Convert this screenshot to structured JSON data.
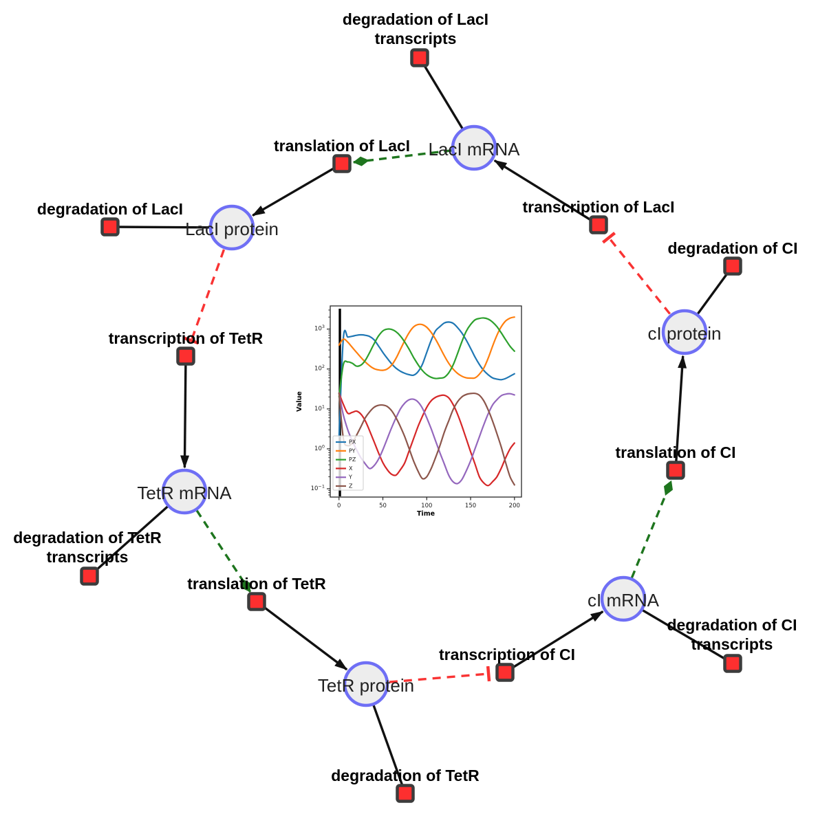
{
  "figure": {
    "background": "#ffffff"
  },
  "diagram": {
    "species": [
      {
        "id": "laci_mrna",
        "label": "LacI mRNA"
      },
      {
        "id": "laci_protein",
        "label": "LacI protein"
      },
      {
        "id": "tetr_mrna",
        "label": "TetR mRNA"
      },
      {
        "id": "tetr_protein",
        "label": "TetR protein"
      },
      {
        "id": "ci_mrna",
        "label": "cI mRNA"
      },
      {
        "id": "ci_protein",
        "label": "cI protein"
      }
    ],
    "reactions": [
      {
        "id": "deg_laci_tx",
        "label_lines": [
          "degradation of LacI",
          "transcripts"
        ]
      },
      {
        "id": "transl_laci",
        "label_lines": [
          "translation of LacI"
        ]
      },
      {
        "id": "deg_laci",
        "label_lines": [
          "degradation of LacI"
        ]
      },
      {
        "id": "tx_laci",
        "label_lines": [
          "transcription of LacI"
        ]
      },
      {
        "id": "deg_ci",
        "label_lines": [
          "degradation of CI"
        ]
      },
      {
        "id": "tx_tetr",
        "label_lines": [
          "transcription of TetR"
        ]
      },
      {
        "id": "deg_tetr_tx",
        "label_lines": [
          "degradation of TetR",
          "transcripts"
        ]
      },
      {
        "id": "transl_tetr",
        "label_lines": [
          "translation of TetR"
        ]
      },
      {
        "id": "transl_ci",
        "label_lines": [
          "translation of CI"
        ]
      },
      {
        "id": "tx_ci",
        "label_lines": [
          "transcription of CI"
        ]
      },
      {
        "id": "deg_ci_tx",
        "label_lines": [
          "degradation of CI",
          "transcripts"
        ]
      },
      {
        "id": "deg_tetr",
        "label_lines": [
          "degradation of TetR"
        ]
      }
    ],
    "edges": [
      {
        "source": "laci_mrna",
        "target": "deg_laci_tx",
        "type": "consumption"
      },
      {
        "source": "laci_mrna",
        "target": "transl_laci",
        "type": "modifier"
      },
      {
        "source": "transl_laci",
        "target": "laci_protein",
        "type": "production"
      },
      {
        "source": "laci_protein",
        "target": "deg_laci",
        "type": "consumption"
      },
      {
        "source": "laci_protein",
        "target": "tx_tetr",
        "type": "inhibition"
      },
      {
        "source": "tx_tetr",
        "target": "tetr_mrna",
        "type": "production"
      },
      {
        "source": "tetr_mrna",
        "target": "deg_tetr_tx",
        "type": "consumption"
      },
      {
        "source": "tetr_mrna",
        "target": "transl_tetr",
        "type": "modifier"
      },
      {
        "source": "transl_tetr",
        "target": "tetr_protein",
        "type": "production"
      },
      {
        "source": "tetr_protein",
        "target": "deg_tetr",
        "type": "consumption"
      },
      {
        "source": "tetr_protein",
        "target": "tx_ci",
        "type": "inhibition"
      },
      {
        "source": "tx_ci",
        "target": "ci_mrna",
        "type": "production"
      },
      {
        "source": "ci_mrna",
        "target": "deg_ci_tx",
        "type": "consumption"
      },
      {
        "source": "ci_mrna",
        "target": "transl_ci",
        "type": "modifier"
      },
      {
        "source": "transl_ci",
        "target": "ci_protein",
        "type": "production"
      },
      {
        "source": "ci_protein",
        "target": "deg_ci",
        "type": "consumption"
      },
      {
        "source": "ci_protein",
        "target": "tx_laci",
        "type": "inhibition"
      },
      {
        "source": "tx_laci",
        "target": "laci_mrna",
        "type": "production"
      }
    ],
    "colors": {
      "species_fill": "#ededed",
      "species_stroke": "#6f6ff5",
      "reaction_fill": "#fd2f2f",
      "reaction_stroke": "#3c3c3c",
      "edge": "#111111",
      "modifier_green": "#1e751e",
      "inhibition_red": "#f93333"
    }
  },
  "chart_data": {
    "type": "line",
    "title": "",
    "xlabel": "Time",
    "ylabel": "Value",
    "x_ticks": [
      0,
      50,
      100,
      150,
      200
    ],
    "y_scale": "log",
    "y_tick_exponents": [
      -1,
      0,
      1,
      2,
      3
    ],
    "xlim": [
      -10,
      208
    ],
    "ylim": [
      0.062,
      3800
    ],
    "grid": false,
    "legend_position": "lower left",
    "x_step": 5,
    "x_start": 0,
    "annotations": [
      {
        "type": "vline",
        "x": 1,
        "color": "#000000"
      }
    ],
    "series": [
      {
        "name": "PX",
        "color": "#1f77b4",
        "values": [
          2,
          600,
          630,
          660,
          700,
          720,
          700,
          650,
          540,
          380,
          260,
          185,
          135,
          105,
          88,
          78,
          72,
          70,
          85,
          130,
          260,
          520,
          900,
          1150,
          1420,
          1500,
          1400,
          1100,
          800,
          530,
          330,
          200,
          130,
          92,
          72,
          60,
          56,
          54,
          58,
          66,
          76
        ]
      },
      {
        "name": "PY",
        "color": "#ff7f0e",
        "values": [
          400,
          560,
          470,
          350,
          260,
          195,
          150,
          120,
          102,
          95,
          93,
          100,
          125,
          185,
          310,
          520,
          820,
          1130,
          1300,
          1290,
          1110,
          830,
          560,
          350,
          215,
          140,
          100,
          78,
          66,
          60,
          59,
          60,
          74,
          105,
          185,
          370,
          700,
          1150,
          1600,
          1880,
          2000
        ]
      },
      {
        "name": "PZ",
        "color": "#2ca02c",
        "values": [
          20,
          130,
          150,
          140,
          118,
          125,
          165,
          260,
          430,
          670,
          900,
          1000,
          980,
          860,
          670,
          470,
          310,
          195,
          130,
          92,
          72,
          62,
          58,
          59,
          62,
          80,
          125,
          240,
          480,
          880,
          1300,
          1700,
          1850,
          1900,
          1780,
          1500,
          1150,
          800,
          540,
          370,
          280
        ]
      },
      {
        "name": "X",
        "color": "#d62728",
        "values": [
          25,
          13,
          7.8,
          8.2,
          8.8,
          7.4,
          5,
          2.8,
          1.5,
          0.8,
          0.45,
          0.3,
          0.23,
          0.22,
          0.3,
          0.45,
          0.9,
          1.8,
          3.6,
          6.5,
          11,
          16,
          19.5,
          21.5,
          22,
          19,
          13,
          7.5,
          3.8,
          1.8,
          0.85,
          0.42,
          0.2,
          0.14,
          0.12,
          0.15,
          0.2,
          0.33,
          0.6,
          1,
          1.4
        ]
      },
      {
        "name": "Y",
        "color": "#9467bd",
        "values": [
          25,
          7,
          3,
          1.6,
          0.95,
          0.6,
          0.42,
          0.32,
          0.38,
          0.55,
          0.95,
          1.8,
          3.4,
          6,
          10,
          14,
          17,
          17.5,
          15,
          10.5,
          6,
          3.2,
          1.6,
          0.8,
          0.42,
          0.22,
          0.15,
          0.135,
          0.17,
          0.28,
          0.5,
          1,
          2,
          4,
          7.5,
          12.5,
          17,
          21.5,
          23.5,
          24,
          22.5
        ]
      },
      {
        "name": "Z",
        "color": "#8c564b",
        "values": [
          25,
          1.8,
          1.2,
          1.4,
          2.2,
          3.6,
          6,
          8.5,
          11,
          12.3,
          12.5,
          11.5,
          9,
          6,
          3.6,
          2,
          1,
          0.5,
          0.28,
          0.18,
          0.2,
          0.32,
          0.6,
          1.2,
          2.6,
          5,
          9.5,
          15,
          20,
          23,
          24.3,
          24.5,
          22,
          16,
          9.5,
          5,
          2.4,
          1.1,
          0.45,
          0.2,
          0.125
        ]
      }
    ]
  }
}
